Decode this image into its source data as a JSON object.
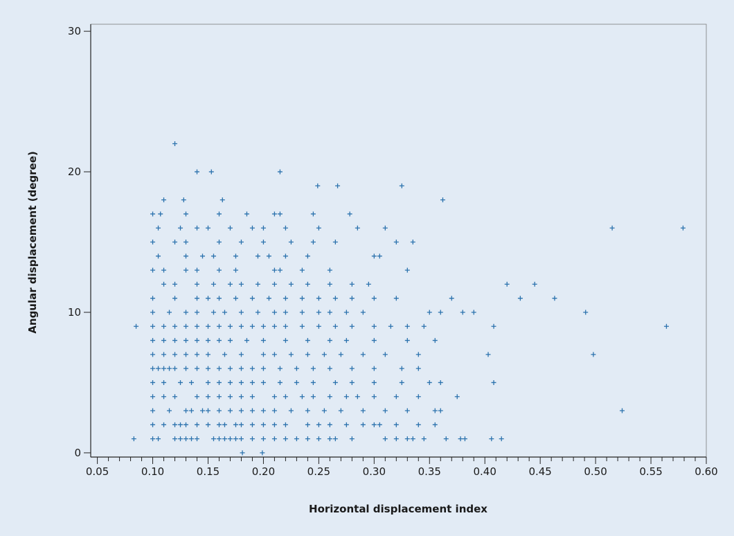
{
  "chart_data": {
    "type": "scatter",
    "x_label": "Horizontal displacement index",
    "y_label": "Angular displacement (degree)",
    "color": "#2b72ad",
    "xlim": [
      0.044,
      0.6
    ],
    "ylim": [
      -0.3,
      30.5
    ],
    "xticks": [
      0.05,
      {
        "value": 0.1,
        "label": "0.10"
      },
      0.15,
      {
        "value": 0.2,
        "label": "0.20"
      },
      0.25,
      {
        "value": 0.3,
        "label": "0.30"
      },
      0.35,
      {
        "value": 0.4,
        "label": "0.40"
      },
      0.45,
      {
        "value": 0.5,
        "label": "0.50"
      },
      0.55,
      {
        "value": 0.6,
        "label": "0.60"
      }
    ],
    "xminorticks": [
      0.06,
      0.07,
      0.08,
      0.09,
      0.11,
      0.12,
      0.13,
      0.14,
      0.16,
      0.17,
      0.18,
      0.19,
      0.21,
      0.22,
      0.23,
      0.24,
      0.26,
      0.27,
      0.28,
      0.29,
      0.31,
      0.32,
      0.33,
      0.34,
      0.36,
      0.37,
      0.38,
      0.39,
      0.41,
      0.42,
      0.43,
      0.44,
      0.46,
      0.47,
      0.48,
      0.49,
      0.51,
      0.52,
      0.53,
      0.54,
      0.56,
      0.57,
      0.58,
      0.59
    ],
    "yticks": [
      0,
      10,
      20,
      30
    ],
    "x": [
      0.1,
      0.105,
      0.12,
      0.125,
      0.13,
      0.135,
      0.14,
      0.155,
      0.16,
      0.165,
      0.17,
      0.175,
      0.18,
      0.19,
      0.2,
      0.21,
      0.22,
      0.23,
      0.24,
      0.25,
      0.26,
      0.265,
      0.28,
      0.31,
      0.32,
      0.33,
      0.335,
      0.345,
      0.365,
      0.378,
      0.382,
      0.1,
      0.11,
      0.12,
      0.125,
      0.13,
      0.14,
      0.15,
      0.16,
      0.165,
      0.175,
      0.18,
      0.19,
      0.2,
      0.21,
      0.22,
      0.24,
      0.25,
      0.26,
      0.275,
      0.29,
      0.3,
      0.305,
      0.32,
      0.34,
      0.355,
      0.1,
      0.115,
      0.13,
      0.135,
      0.145,
      0.15,
      0.16,
      0.17,
      0.18,
      0.19,
      0.2,
      0.21,
      0.225,
      0.24,
      0.255,
      0.27,
      0.29,
      0.31,
      0.33,
      0.355,
      0.36,
      0.1,
      0.11,
      0.12,
      0.14,
      0.15,
      0.16,
      0.17,
      0.18,
      0.19,
      0.21,
      0.22,
      0.235,
      0.245,
      0.26,
      0.275,
      0.285,
      0.3,
      0.32,
      0.34,
      0.375,
      0.1,
      0.11,
      0.125,
      0.135,
      0.15,
      0.16,
      0.17,
      0.18,
      0.19,
      0.2,
      0.215,
      0.23,
      0.245,
      0.265,
      0.28,
      0.3,
      0.325,
      0.35,
      0.36,
      0.1,
      0.105,
      0.11,
      0.115,
      0.12,
      0.13,
      0.14,
      0.15,
      0.16,
      0.17,
      0.18,
      0.19,
      0.2,
      0.215,
      0.23,
      0.245,
      0.26,
      0.28,
      0.3,
      0.325,
      0.34,
      0.1,
      0.11,
      0.12,
      0.13,
      0.14,
      0.15,
      0.165,
      0.18,
      0.2,
      0.21,
      0.225,
      0.24,
      0.255,
      0.27,
      0.29,
      0.31,
      0.34,
      0.1,
      0.11,
      0.12,
      0.13,
      0.14,
      0.15,
      0.16,
      0.17,
      0.185,
      0.2,
      0.22,
      0.24,
      0.26,
      0.275,
      0.3,
      0.33,
      0.355,
      0.1,
      0.11,
      0.12,
      0.13,
      0.14,
      0.15,
      0.16,
      0.17,
      0.18,
      0.19,
      0.2,
      0.21,
      0.22,
      0.235,
      0.25,
      0.265,
      0.28,
      0.3,
      0.315,
      0.33,
      0.345,
      0.1,
      0.115,
      0.13,
      0.14,
      0.155,
      0.165,
      0.18,
      0.195,
      0.21,
      0.22,
      0.235,
      0.25,
      0.26,
      0.275,
      0.29,
      0.35,
      0.36,
      0.38,
      0.39,
      0.1,
      0.12,
      0.14,
      0.15,
      0.16,
      0.175,
      0.19,
      0.205,
      0.22,
      0.235,
      0.25,
      0.265,
      0.28,
      0.3,
      0.32,
      0.37,
      0.11,
      0.12,
      0.14,
      0.155,
      0.17,
      0.18,
      0.195,
      0.21,
      0.225,
      0.24,
      0.26,
      0.28,
      0.295,
      0.1,
      0.11,
      0.13,
      0.14,
      0.16,
      0.175,
      0.21,
      0.215,
      0.235,
      0.26,
      0.33,
      0.105,
      0.13,
      0.145,
      0.155,
      0.175,
      0.195,
      0.205,
      0.22,
      0.24,
      0.3,
      0.305,
      0.1,
      0.12,
      0.13,
      0.16,
      0.18,
      0.2,
      0.225,
      0.245,
      0.265,
      0.32,
      0.335,
      0.105,
      0.125,
      0.14,
      0.15,
      0.17,
      0.19,
      0.2,
      0.22,
      0.25,
      0.285,
      0.31,
      0.1,
      0.107,
      0.13,
      0.16,
      0.185,
      0.21,
      0.215,
      0.245,
      0.278,
      0.12,
      0.14,
      0.153,
      0.215,
      0.249,
      0.267,
      0.325,
      0.362,
      0.11,
      0.128,
      0.163,
      0.515,
      0.579,
      0.564,
      0.524,
      0.498,
      0.491,
      0.463,
      0.445,
      0.42,
      0.432,
      0.408,
      0.403,
      0.408,
      0.406,
      0.415,
      0.085,
      0.083,
      0.181,
      0.199
    ],
    "values": [
      1,
      1,
      1,
      1,
      1,
      1,
      1,
      1,
      1,
      1,
      1,
      1,
      1,
      1,
      1,
      1,
      1,
      1,
      1,
      1,
      1,
      1,
      1,
      1,
      1,
      1,
      1,
      1,
      1,
      1,
      1,
      2,
      2,
      2,
      2,
      2,
      2,
      2,
      2,
      2,
      2,
      2,
      2,
      2,
      2,
      2,
      2,
      2,
      2,
      2,
      2,
      2,
      2,
      2,
      2,
      2,
      3,
      3,
      3,
      3,
      3,
      3,
      3,
      3,
      3,
      3,
      3,
      3,
      3,
      3,
      3,
      3,
      3,
      3,
      3,
      3,
      3,
      4,
      4,
      4,
      4,
      4,
      4,
      4,
      4,
      4,
      4,
      4,
      4,
      4,
      4,
      4,
      4,
      4,
      4,
      4,
      4,
      5,
      5,
      5,
      5,
      5,
      5,
      5,
      5,
      5,
      5,
      5,
      5,
      5,
      5,
      5,
      5,
      5,
      5,
      5,
      6,
      6,
      6,
      6,
      6,
      6,
      6,
      6,
      6,
      6,
      6,
      6,
      6,
      6,
      6,
      6,
      6,
      6,
      6,
      6,
      6,
      7,
      7,
      7,
      7,
      7,
      7,
      7,
      7,
      7,
      7,
      7,
      7,
      7,
      7,
      7,
      7,
      7,
      8,
      8,
      8,
      8,
      8,
      8,
      8,
      8,
      8,
      8,
      8,
      8,
      8,
      8,
      8,
      8,
      8,
      9,
      9,
      9,
      9,
      9,
      9,
      9,
      9,
      9,
      9,
      9,
      9,
      9,
      9,
      9,
      9,
      9,
      9,
      9,
      9,
      9,
      10,
      10,
      10,
      10,
      10,
      10,
      10,
      10,
      10,
      10,
      10,
      10,
      10,
      10,
      10,
      10,
      10,
      10,
      10,
      11,
      11,
      11,
      11,
      11,
      11,
      11,
      11,
      11,
      11,
      11,
      11,
      11,
      11,
      11,
      11,
      12,
      12,
      12,
      12,
      12,
      12,
      12,
      12,
      12,
      12,
      12,
      12,
      12,
      13,
      13,
      13,
      13,
      13,
      13,
      13,
      13,
      13,
      13,
      13,
      14,
      14,
      14,
      14,
      14,
      14,
      14,
      14,
      14,
      14,
      14,
      15,
      15,
      15,
      15,
      15,
      15,
      15,
      15,
      15,
      15,
      15,
      16,
      16,
      16,
      16,
      16,
      16,
      16,
      16,
      16,
      16,
      16,
      17,
      17,
      17,
      17,
      17,
      17,
      17,
      17,
      17,
      22,
      20,
      20,
      20,
      19,
      19,
      19,
      18,
      18,
      18,
      18,
      16,
      16,
      9,
      3,
      7,
      10,
      11,
      12,
      12,
      11,
      9,
      7,
      5,
      1,
      1,
      9,
      1,
      0,
      0
    ]
  }
}
